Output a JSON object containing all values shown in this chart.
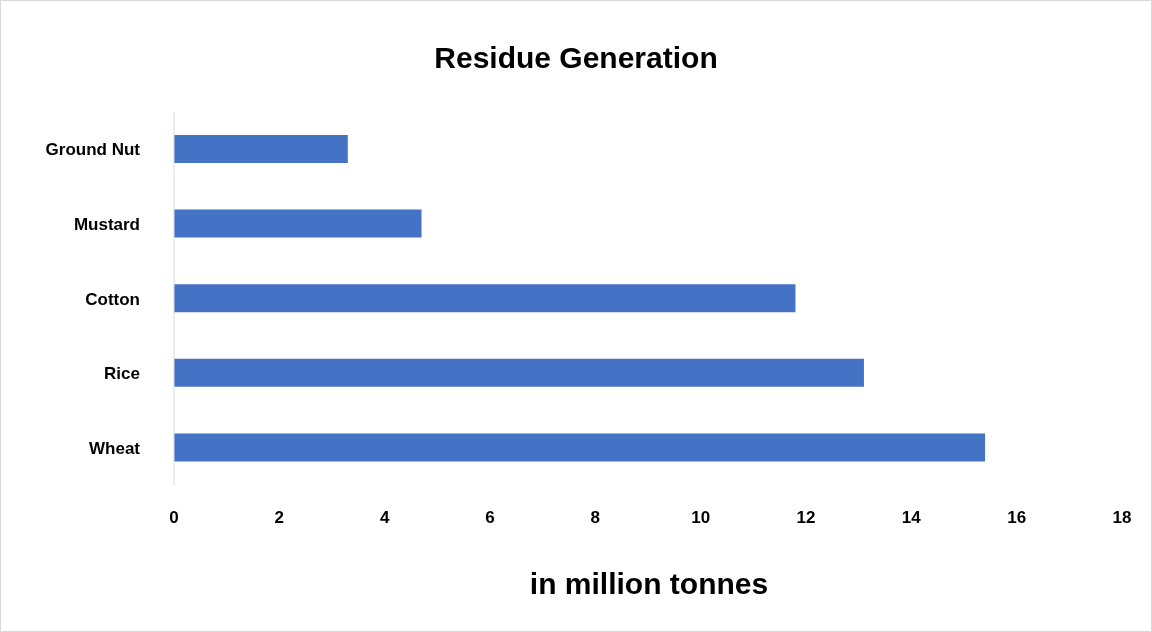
{
  "chart_data": {
    "type": "bar",
    "orientation": "horizontal",
    "title": "Residue Generation",
    "xlabel": "in million tonnes",
    "categories": [
      "Ground Nut",
      "Mustard",
      "Cotton",
      "Rice",
      "Wheat"
    ],
    "values": [
      3.3,
      4.7,
      11.8,
      13.1,
      15.4
    ],
    "color": "#4472c4",
    "xlim": [
      0,
      18
    ],
    "xticks": [
      0,
      2,
      4,
      6,
      8,
      10,
      12,
      14,
      16,
      18
    ]
  }
}
